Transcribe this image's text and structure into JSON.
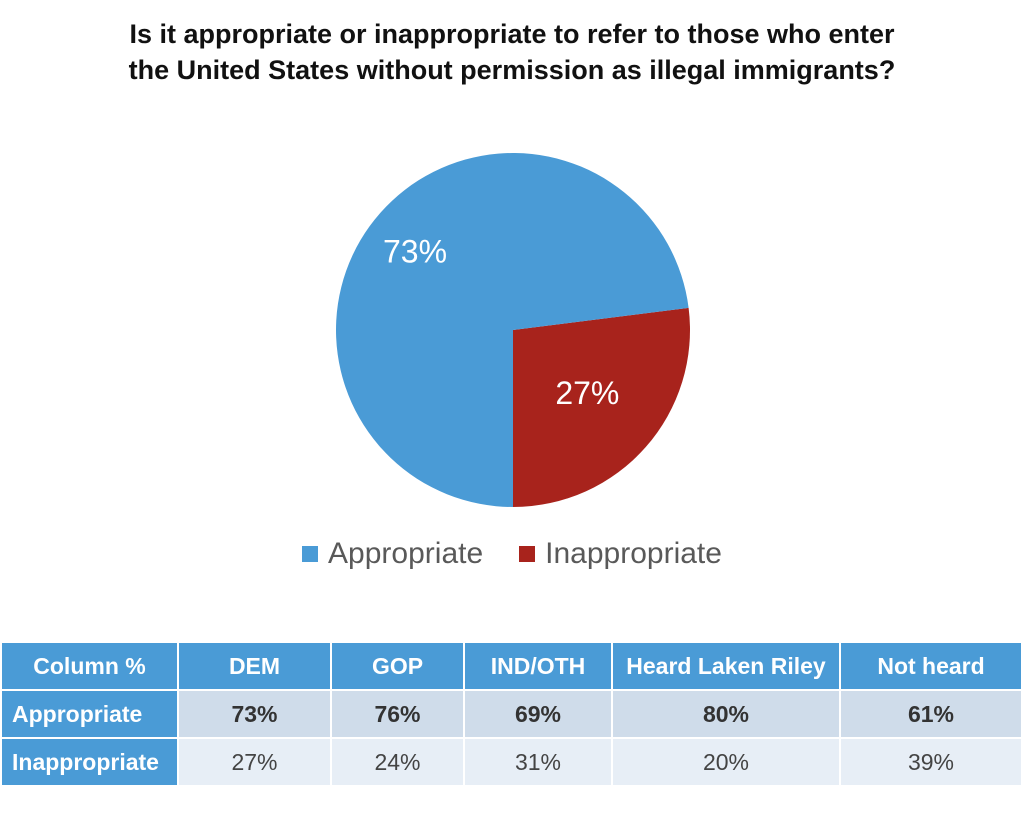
{
  "chart_data": {
    "type": "pie",
    "title": "Is it appropriate or inappropriate to refer to those who enter the United States without permission as illegal immigrants?",
    "categories": [
      "Appropriate",
      "Inappropriate"
    ],
    "values": [
      73,
      27
    ],
    "labels": [
      "73%",
      "27%"
    ],
    "colors": [
      "#4a9bd6",
      "#a8231c"
    ],
    "legend_position": "bottom"
  },
  "table": {
    "header": [
      "Column %",
      "DEM",
      "GOP",
      "IND/OTH",
      "Heard Laken Riley",
      "Not heard"
    ],
    "rows": [
      {
        "label": "Appropriate",
        "values": [
          "73%",
          "76%",
          "69%",
          "80%",
          "61%"
        ]
      },
      {
        "label": "Inappropriate",
        "values": [
          "27%",
          "24%",
          "31%",
          "20%",
          "39%"
        ]
      }
    ]
  }
}
